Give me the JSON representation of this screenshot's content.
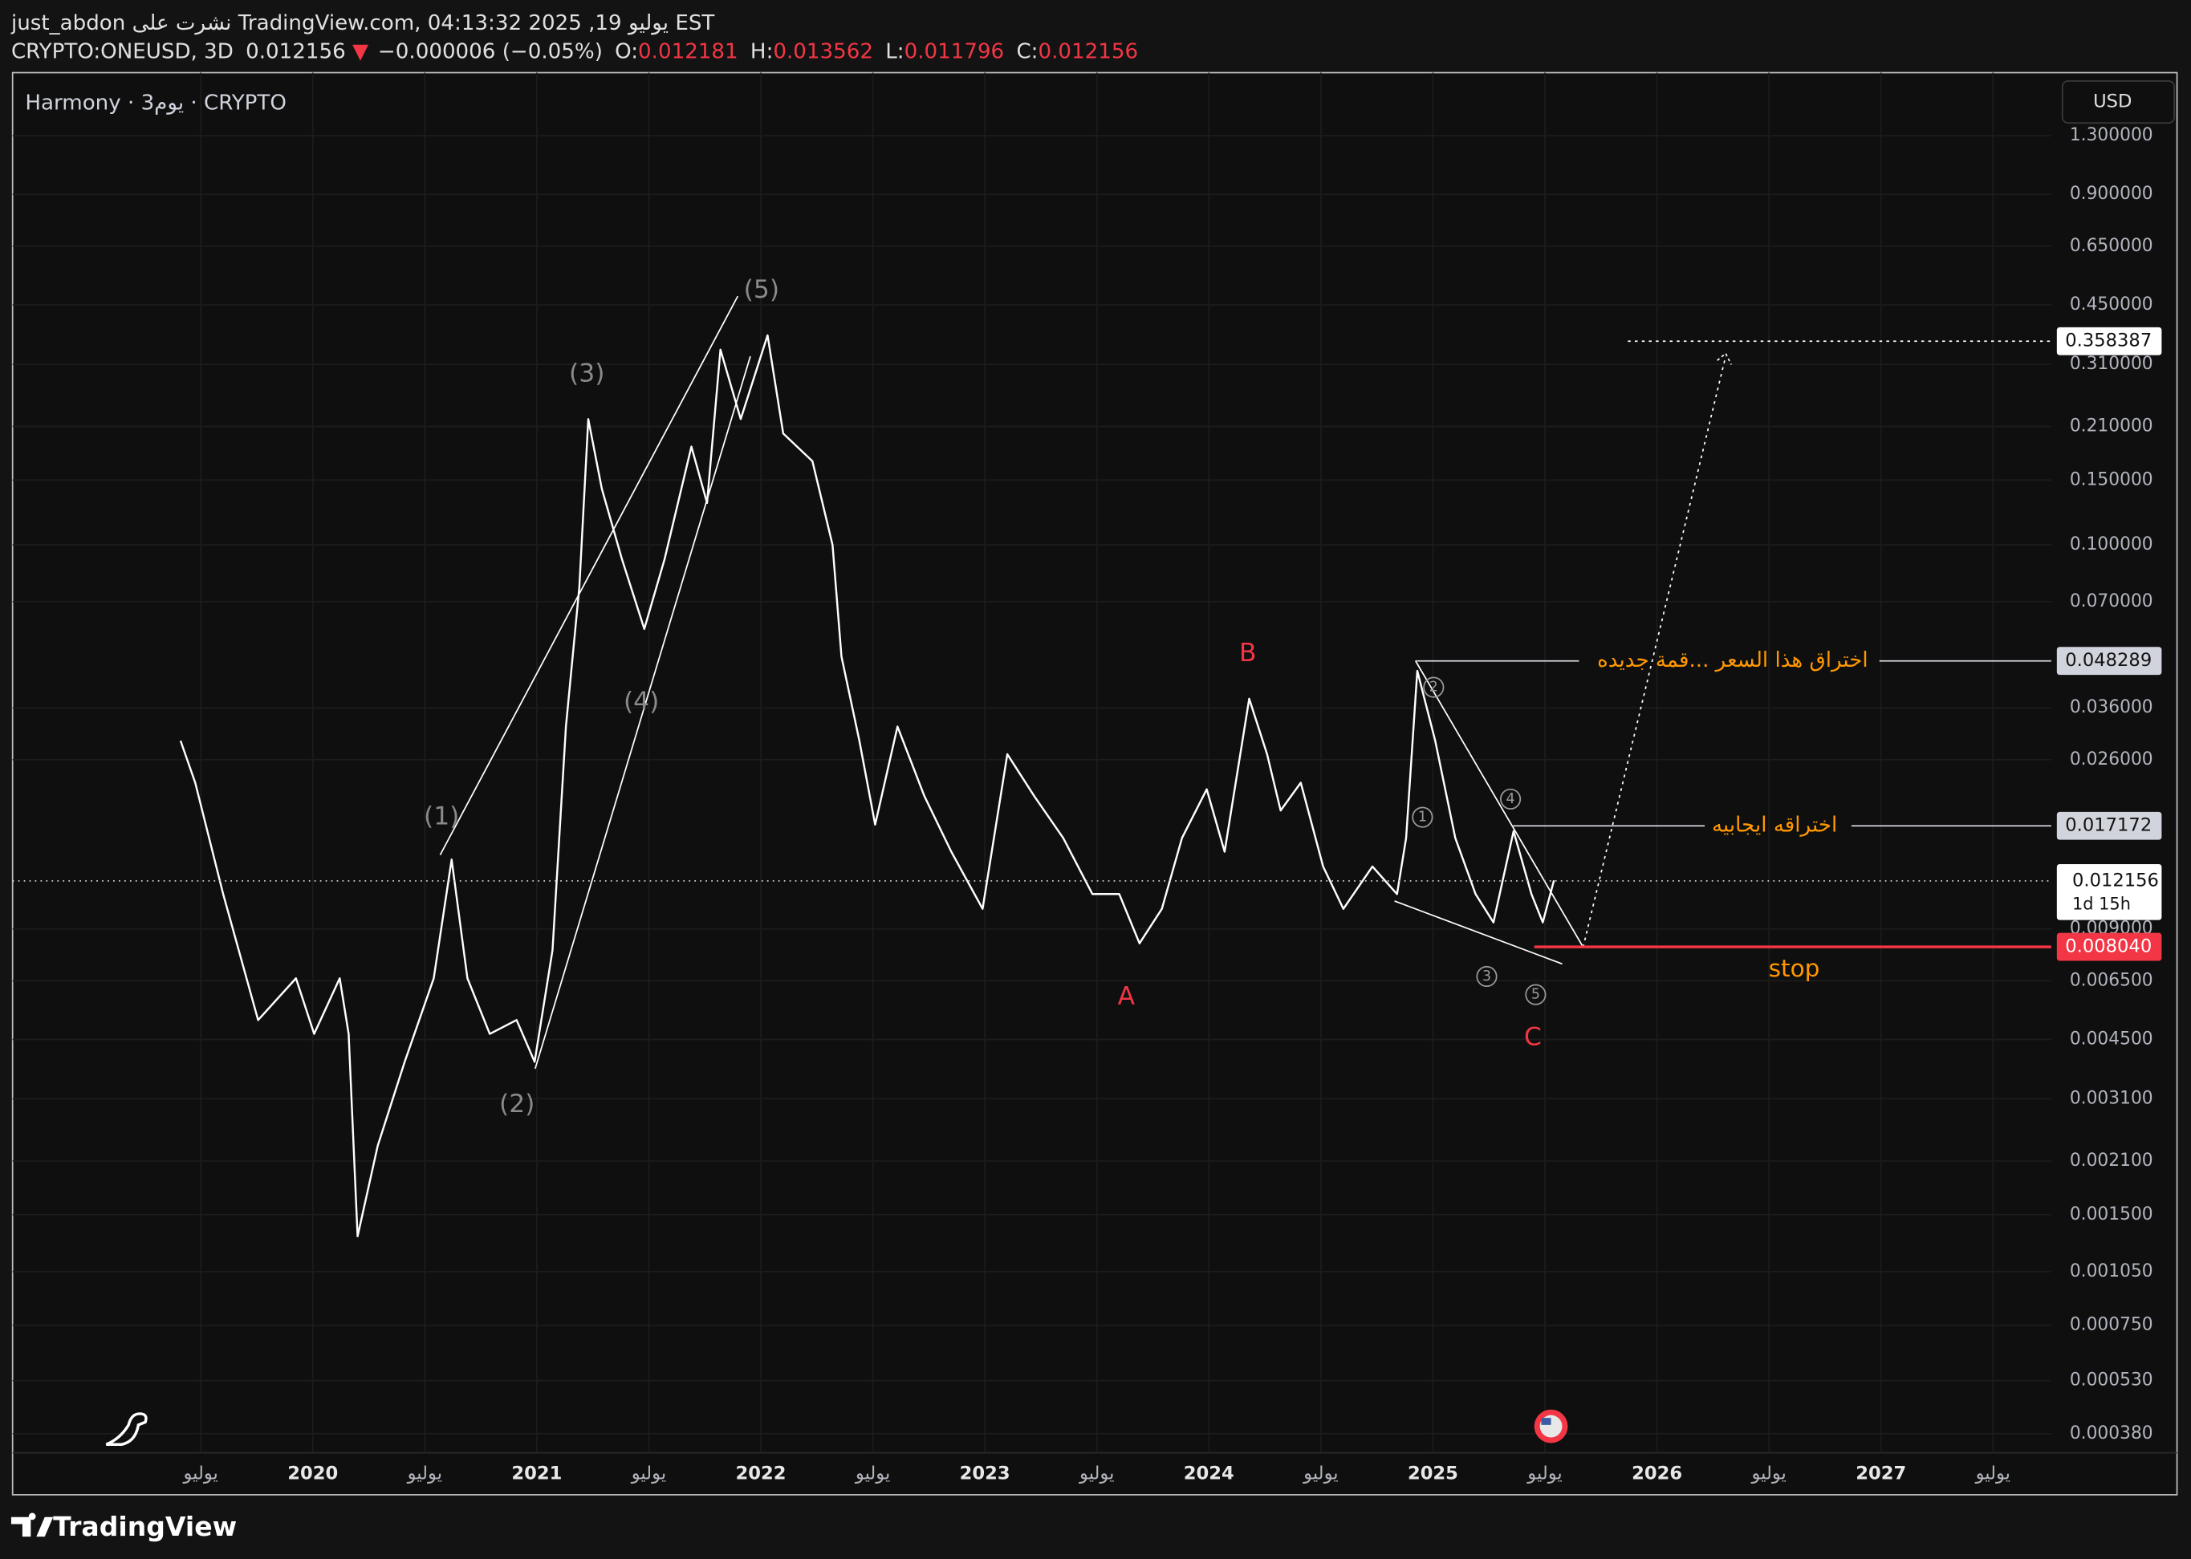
{
  "header": {
    "author_line": "just_abdon نشرت على TradingView.com, يوليو 19, 2025 04:13:32 EST",
    "symbol": "CRYPTO:ONEUSD, 3D",
    "close": 0.012156,
    "arrow": "▼",
    "change": "−0.000006 (−0.05%)",
    "o_label": "O:",
    "open": 0.012181,
    "h_label": "H:",
    "high": 0.013562,
    "l_label": "L:",
    "low": 0.011796,
    "c_label": "C:",
    "last_close": 0.012156
  },
  "pane_label": "Harmony · 3يوم · CRYPTO",
  "currency": "USD",
  "footer": "TradingView",
  "chart_data": {
    "type": "line",
    "log_scale": true,
    "grid": true,
    "color": "#ffffff",
    "x": [
      2019.41,
      2019.475,
      2019.6,
      2019.756,
      2019.925,
      2020.006,
      2020.12,
      2020.16,
      2020.2,
      2020.29,
      2020.41,
      2020.54,
      2020.62,
      2020.69,
      2020.79,
      2020.91,
      2020.99,
      2021.07,
      2021.13,
      2021.19,
      2021.23,
      2021.29,
      2021.38,
      2021.48,
      2021.57,
      2021.69,
      2021.76,
      2021.82,
      2021.91,
      2022.03,
      2022.1,
      2022.23,
      2022.32,
      2022.36,
      2022.44,
      2022.51,
      2022.61,
      2022.73,
      2022.85,
      2022.99,
      2023.1,
      2023.22,
      2023.35,
      2023.48,
      2023.6,
      2023.69,
      2023.79,
      2023.88,
      2023.99,
      2024.07,
      2024.18,
      2024.26,
      2024.32,
      2024.41,
      2024.51,
      2024.6,
      2024.73,
      2024.84,
      2024.88,
      2024.93,
      2025.01,
      2025.1,
      2025.19,
      2025.27,
      2025.36,
      2025.44,
      2025.49,
      2025.54
    ],
    "values": [
      0.0293,
      0.0225,
      0.0112,
      0.00508,
      0.0066,
      0.00466,
      0.0066,
      0.00466,
      0.00131,
      0.00231,
      0.00391,
      0.0066,
      0.0139,
      0.0066,
      0.00466,
      0.00508,
      0.00391,
      0.00787,
      0.032,
      0.0767,
      0.22,
      0.142,
      0.0914,
      0.059,
      0.0914,
      0.185,
      0.13,
      0.34,
      0.22,
      0.372,
      0.201,
      0.169,
      0.1,
      0.0496,
      0.0293,
      0.0173,
      0.032,
      0.0207,
      0.0146,
      0.0102,
      0.0269,
      0.0207,
      0.0159,
      0.0112,
      0.0112,
      0.00822,
      0.0102,
      0.0159,
      0.0216,
      0.0146,
      0.0381,
      0.0269,
      0.0189,
      0.0225,
      0.0133,
      0.0102,
      0.0133,
      0.0112,
      0.0159,
      0.0454,
      0.0293,
      0.0159,
      0.0112,
      0.00937,
      0.0166,
      0.0112,
      0.00937,
      0.0122
    ],
    "xlim": [
      2018.66,
      2027.76
    ],
    "xticks": [
      {
        "value": 2019.5,
        "label": "يوليو"
      },
      2020,
      {
        "value": 2020.5,
        "label": "يوليو"
      },
      2021,
      {
        "value": 2021.5,
        "label": "يوليو"
      },
      2022,
      {
        "value": 2022.5,
        "label": "يوليو"
      },
      2023,
      {
        "value": 2023.5,
        "label": "يوليو"
      },
      2024,
      {
        "value": 2024.5,
        "label": "يوليو"
      },
      2025,
      {
        "value": 2025.5,
        "label": "يوليو"
      },
      2026,
      {
        "value": 2026.5,
        "label": "يوليو"
      },
      2027,
      {
        "value": 2027.5,
        "label": "يوليو"
      }
    ],
    "ylim": [
      0.000337,
      1.93
    ],
    "yticks": [
      {
        "value": 1.3,
        "label": "1.300000"
      },
      {
        "value": 0.9,
        "label": "0.900000"
      },
      {
        "value": 0.65,
        "label": "0.650000"
      },
      {
        "value": 0.45,
        "label": "0.450000"
      },
      {
        "value": 0.31,
        "label": "0.310000"
      },
      {
        "value": 0.21,
        "label": "0.210000"
      },
      {
        "value": 0.15,
        "label": "0.150000"
      },
      {
        "value": 0.1,
        "label": "0.100000"
      },
      {
        "value": 0.07,
        "label": "0.070000"
      },
      {
        "value": 0.036,
        "label": "0.036000"
      },
      {
        "value": 0.026,
        "label": "0.026000"
      },
      {
        "value": 0.009,
        "label": "0.009000"
      },
      {
        "value": 0.0065,
        "label": "0.006500"
      },
      {
        "value": 0.0045,
        "label": "0.004500"
      },
      {
        "value": 0.0031,
        "label": "0.003100"
      },
      {
        "value": 0.0021,
        "label": "0.002100"
      },
      {
        "value": 0.0015,
        "label": "0.001500"
      },
      {
        "value": 0.00105,
        "label": "0.001050"
      },
      {
        "value": 0.00075,
        "label": "0.000750"
      },
      {
        "value": 0.00053,
        "label": "0.000530"
      },
      {
        "value": 0.00038,
        "label": "0.000380"
      }
    ],
    "last_price": 0.012156,
    "countdown": "1d 15h",
    "levels": [
      0.358387,
      0.048289,
      0.017172,
      {
        "value": 0.00804,
        "label": "0.008040"
      }
    ],
    "level_colors": [
      "#ffffff",
      "#d1d4dc",
      "#d1d4dc",
      "#f23645"
    ],
    "annotations": [
      "(1)",
      "(2)",
      "(3)",
      "(4)",
      "(5)",
      "A",
      "B",
      "C",
      "1",
      "2",
      "3",
      "4",
      "5",
      "stop",
      "اختراق هذا السعر ...قمة جديده",
      "اختراقه ايجابيه"
    ]
  }
}
